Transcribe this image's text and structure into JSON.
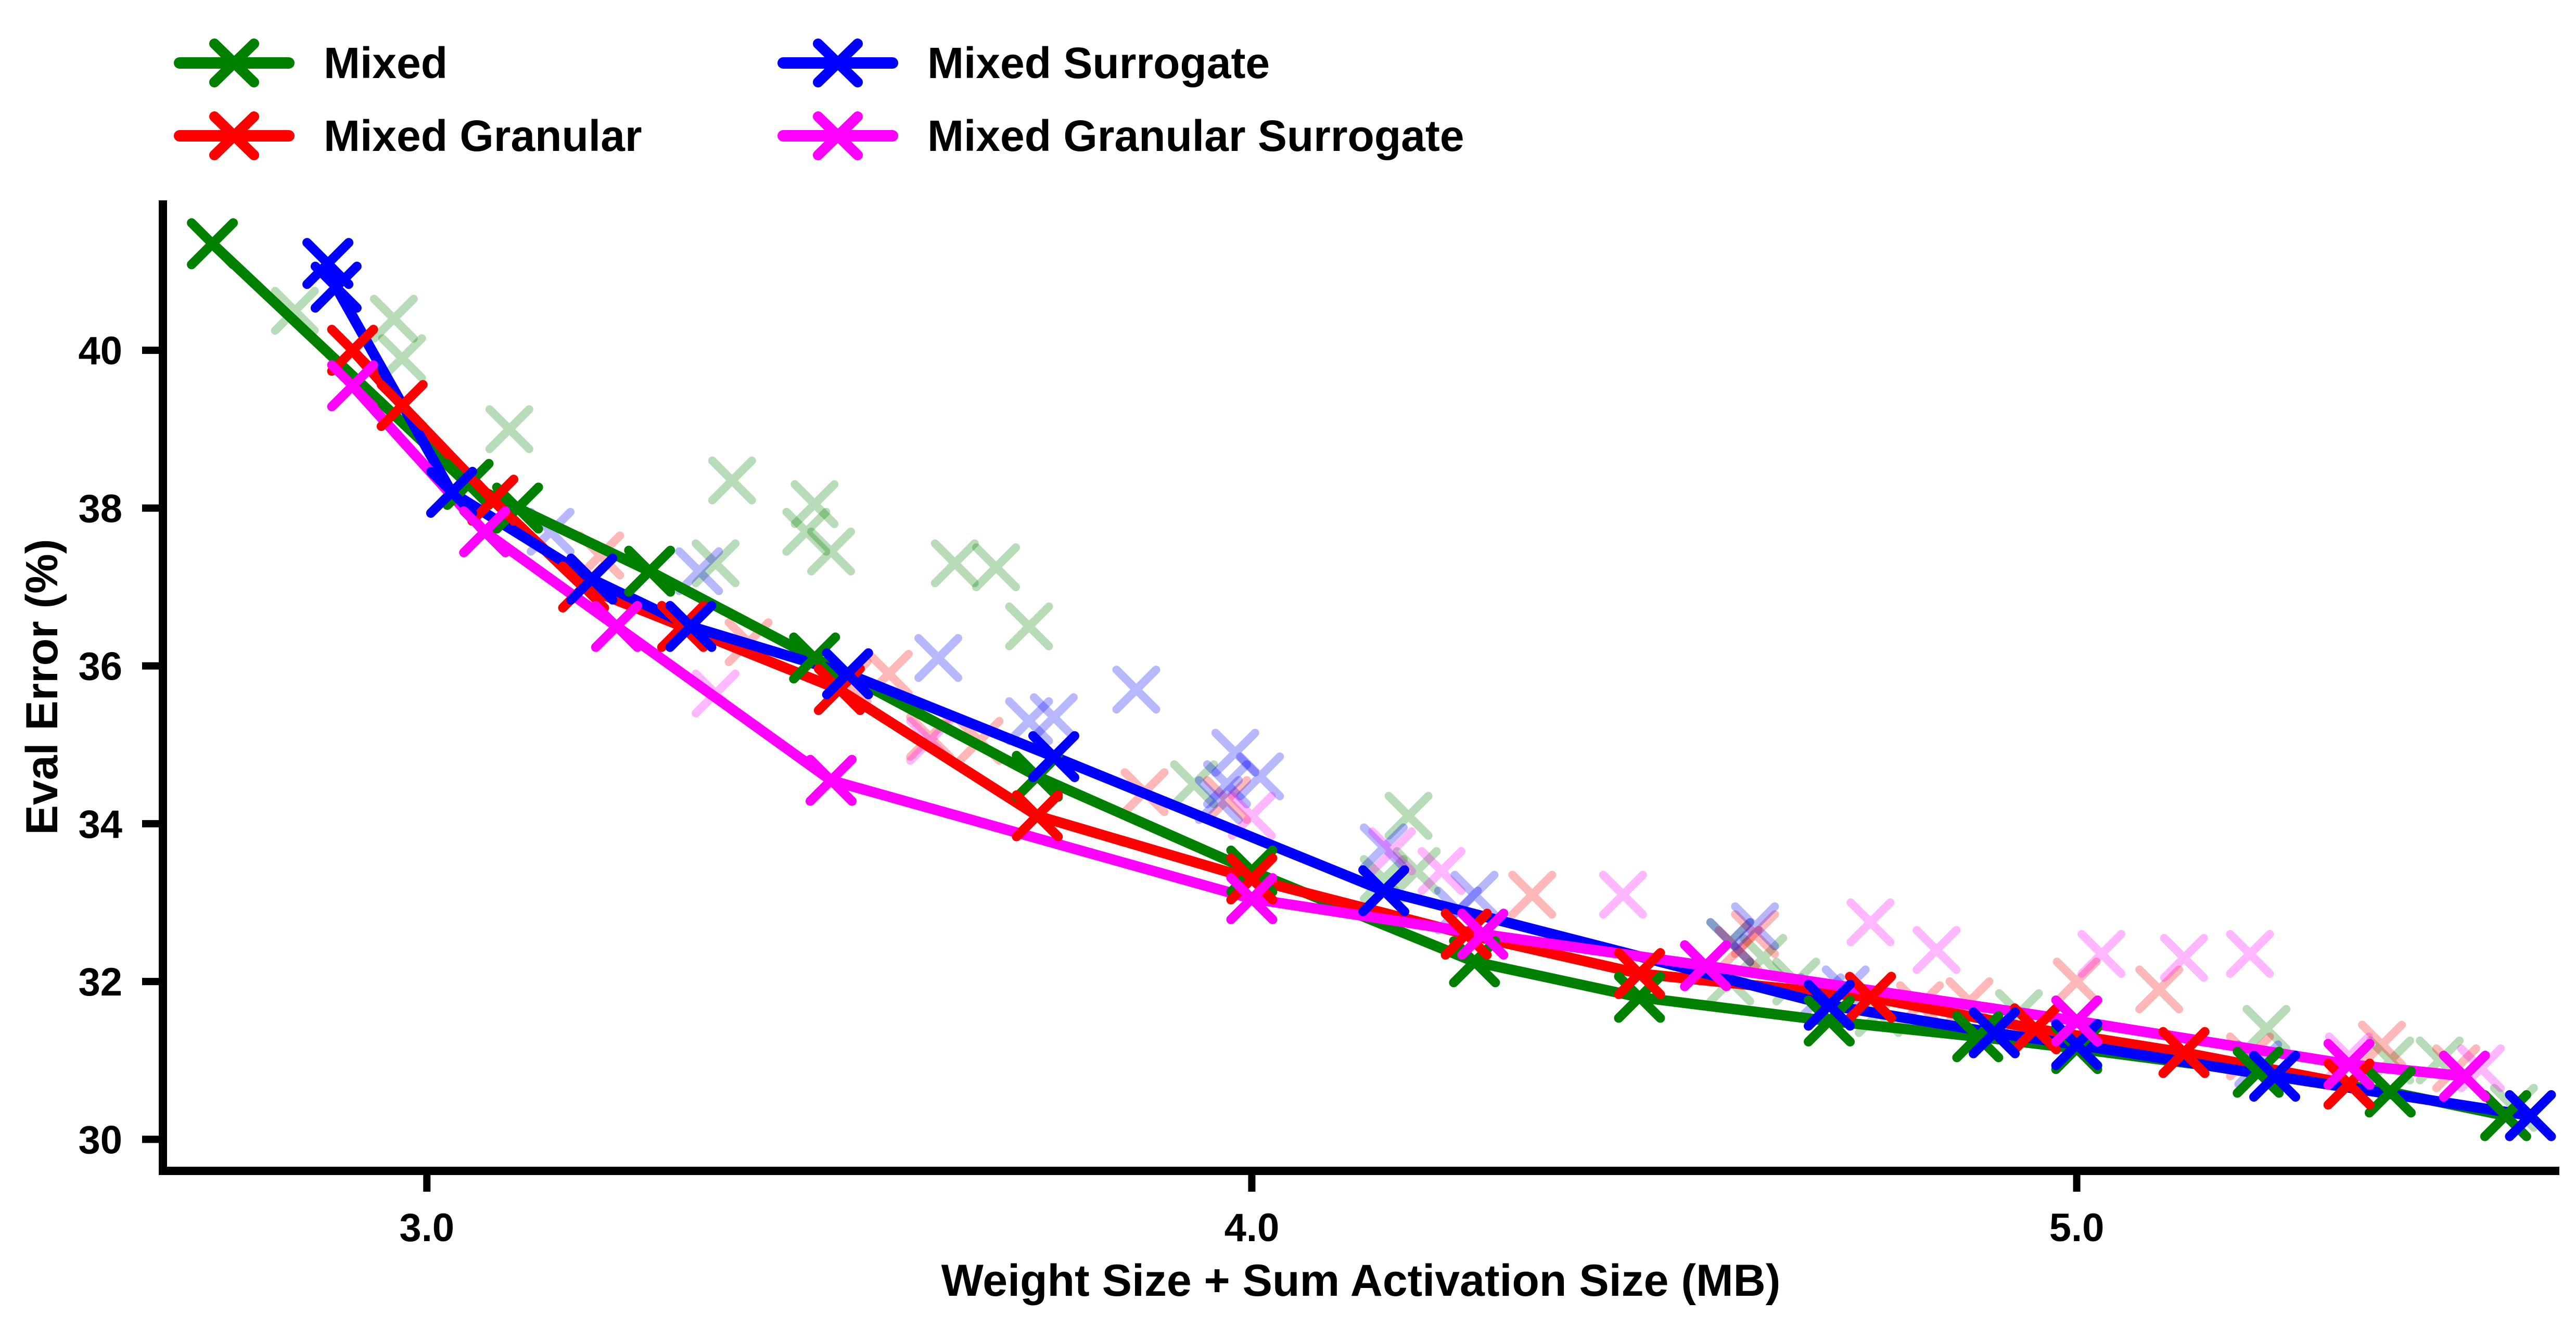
{
  "chart_data": {
    "type": "line",
    "title": "",
    "xlabel": "Weight Size + Sum Activation Size (MB)",
    "ylabel": "Eval Error (%)",
    "xlim": [
      2.68,
      5.58
    ],
    "ylim": [
      29.6,
      41.9
    ],
    "xticks": [
      {
        "value": 3.0,
        "label": "3.0"
      },
      {
        "value": 4.0,
        "label": "4.0"
      },
      {
        "value": 5.0,
        "label": "5.0"
      }
    ],
    "yticks": [
      {
        "value": 30,
        "label": "30"
      },
      {
        "value": 32,
        "label": "32"
      },
      {
        "value": 34,
        "label": "34"
      },
      {
        "value": 36,
        "label": "36"
      },
      {
        "value": 38,
        "label": "38"
      },
      {
        "value": 40,
        "label": "40"
      }
    ],
    "legend_position": "top-left, above plot, two columns",
    "grid": false,
    "series": [
      {
        "name": "Mixed",
        "color": "#008000",
        "frontier": [
          [
            2.74,
            41.35
          ],
          [
            3.05,
            38.3
          ],
          [
            3.11,
            38.0
          ],
          [
            3.27,
            37.2
          ],
          [
            3.47,
            36.1
          ],
          [
            3.74,
            34.6
          ],
          [
            4.0,
            33.4
          ],
          [
            4.27,
            32.25
          ],
          [
            4.47,
            31.8
          ],
          [
            4.7,
            31.5
          ],
          [
            4.88,
            31.3
          ],
          [
            5.0,
            31.15
          ],
          [
            5.22,
            30.85
          ],
          [
            5.38,
            30.6
          ],
          [
            5.52,
            30.3
          ]
        ],
        "points": [
          [
            2.84,
            40.5
          ],
          [
            2.96,
            40.4
          ],
          [
            2.97,
            39.9
          ],
          [
            3.1,
            39.0
          ],
          [
            3.37,
            38.35
          ],
          [
            3.47,
            38.05
          ],
          [
            3.46,
            37.7
          ],
          [
            3.49,
            37.45
          ],
          [
            3.35,
            37.3
          ],
          [
            3.64,
            37.3
          ],
          [
            3.69,
            37.25
          ],
          [
            3.73,
            36.5
          ],
          [
            3.93,
            34.5
          ],
          [
            4.19,
            34.1
          ],
          [
            4.16,
            33.3
          ],
          [
            4.2,
            33.4
          ],
          [
            4.58,
            32.5
          ],
          [
            4.62,
            32.3
          ],
          [
            4.58,
            32.0
          ],
          [
            4.66,
            32.0
          ],
          [
            4.76,
            31.6
          ],
          [
            4.93,
            31.6
          ],
          [
            5.0,
            31.5
          ],
          [
            5.23,
            31.4
          ],
          [
            5.38,
            31.0
          ],
          [
            5.44,
            31.0
          ],
          [
            5.53,
            30.4
          ]
        ]
      },
      {
        "name": "Mixed Granular",
        "color": "#ff0000",
        "frontier": [
          [
            2.91,
            40.0
          ],
          [
            2.97,
            39.3
          ],
          [
            3.08,
            38.1
          ],
          [
            3.19,
            37.0
          ],
          [
            3.31,
            36.5
          ],
          [
            3.5,
            35.7
          ],
          [
            3.74,
            34.1
          ],
          [
            4.0,
            33.3
          ],
          [
            4.26,
            32.6
          ],
          [
            4.47,
            32.1
          ],
          [
            4.75,
            31.8
          ],
          [
            4.95,
            31.4
          ],
          [
            5.13,
            31.1
          ],
          [
            5.33,
            30.7
          ]
        ],
        "points": [
          [
            3.21,
            37.4
          ],
          [
            3.39,
            36.3
          ],
          [
            3.51,
            35.8
          ],
          [
            3.56,
            35.9
          ],
          [
            3.61,
            35.1
          ],
          [
            3.67,
            35.05
          ],
          [
            3.87,
            34.4
          ],
          [
            3.97,
            34.3
          ],
          [
            4.34,
            33.1
          ],
          [
            4.61,
            32.6
          ],
          [
            4.59,
            32.4
          ],
          [
            4.81,
            31.7
          ],
          [
            4.87,
            31.75
          ],
          [
            5.0,
            32.0
          ],
          [
            5.1,
            31.9
          ],
          [
            5.21,
            31.05
          ],
          [
            5.37,
            31.2
          ],
          [
            5.46,
            30.9
          ]
        ]
      },
      {
        "name": "Mixed Surrogate",
        "color": "#0000ff",
        "frontier": [
          [
            2.88,
            41.1
          ],
          [
            2.89,
            40.8
          ],
          [
            3.03,
            38.2
          ],
          [
            3.2,
            37.1
          ],
          [
            3.32,
            36.5
          ],
          [
            3.51,
            35.9
          ],
          [
            3.76,
            34.85
          ],
          [
            4.16,
            33.15
          ],
          [
            4.7,
            31.7
          ],
          [
            4.9,
            31.35
          ],
          [
            5.0,
            31.2
          ],
          [
            5.24,
            30.8
          ],
          [
            5.55,
            30.3
          ]
        ],
        "points": [
          [
            3.15,
            37.7
          ],
          [
            3.33,
            37.2
          ],
          [
            3.62,
            36.1
          ],
          [
            3.73,
            35.3
          ],
          [
            3.76,
            35.35
          ],
          [
            3.86,
            35.7
          ],
          [
            3.98,
            34.9
          ],
          [
            3.97,
            34.5
          ],
          [
            4.01,
            34.6
          ],
          [
            3.96,
            34.3
          ],
          [
            4.16,
            33.7
          ],
          [
            4.27,
            33.1
          ],
          [
            4.25,
            32.9
          ],
          [
            4.58,
            32.5
          ],
          [
            4.61,
            32.7
          ],
          [
            4.69,
            31.8
          ],
          [
            4.72,
            31.9
          ],
          [
            5.22,
            30.95
          ]
        ]
      },
      {
        "name": "Mixed Granular Surrogate",
        "color": "#ff00ff",
        "frontier": [
          [
            2.91,
            39.55
          ],
          [
            3.07,
            37.7
          ],
          [
            3.23,
            36.5
          ],
          [
            3.49,
            34.55
          ],
          [
            4.0,
            33.05
          ],
          [
            4.28,
            32.6
          ],
          [
            4.55,
            32.2
          ],
          [
            5.0,
            31.5
          ],
          [
            5.33,
            30.95
          ],
          [
            5.47,
            30.8
          ]
        ],
        "points": [
          [
            3.35,
            35.65
          ],
          [
            3.61,
            35.05
          ],
          [
            4.0,
            34.1
          ],
          [
            4.17,
            33.65
          ],
          [
            4.23,
            33.4
          ],
          [
            4.45,
            33.1
          ],
          [
            4.75,
            32.75
          ],
          [
            4.83,
            32.4
          ],
          [
            5.03,
            32.35
          ],
          [
            5.13,
            32.3
          ],
          [
            5.21,
            32.35
          ],
          [
            5.33,
            31.05
          ],
          [
            5.49,
            30.9
          ]
        ]
      }
    ]
  }
}
